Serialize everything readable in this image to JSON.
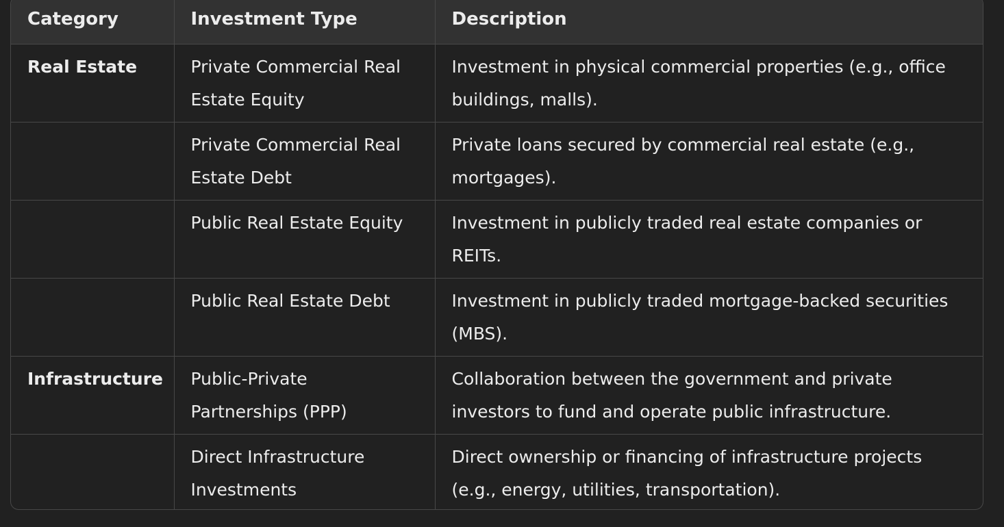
{
  "table": {
    "headers": [
      "Category",
      "Investment Type",
      "Description"
    ],
    "rows": [
      {
        "category": "Real Estate",
        "type": "Private Commercial Real Estate Equity",
        "description": "Investment in physical commercial properties (e.g., office buildings, malls)."
      },
      {
        "category": "",
        "type": "Private Commercial Real Estate Debt",
        "description": "Private loans secured by commercial real estate (e.g., mortgages)."
      },
      {
        "category": "",
        "type": "Public Real Estate Equity",
        "description": "Investment in publicly traded real estate companies or REITs."
      },
      {
        "category": "",
        "type": "Public Real Estate Debt",
        "description": "Investment in publicly traded mortgage-backed securities (MBS)."
      },
      {
        "category": "Infrastructure",
        "type": "Public-Private Partnerships (PPP)",
        "description": "Collaboration between the government and private investors to fund and operate public infrastructure."
      },
      {
        "category": "",
        "type": "Direct Infrastructure Investments",
        "description": "Direct ownership or financing of infrastructure projects (e.g., energy, utilities, transportation)."
      }
    ]
  },
  "colors": {
    "background": "#212121",
    "header_background": "#323232",
    "border": "#484848",
    "text": "#ececec"
  }
}
